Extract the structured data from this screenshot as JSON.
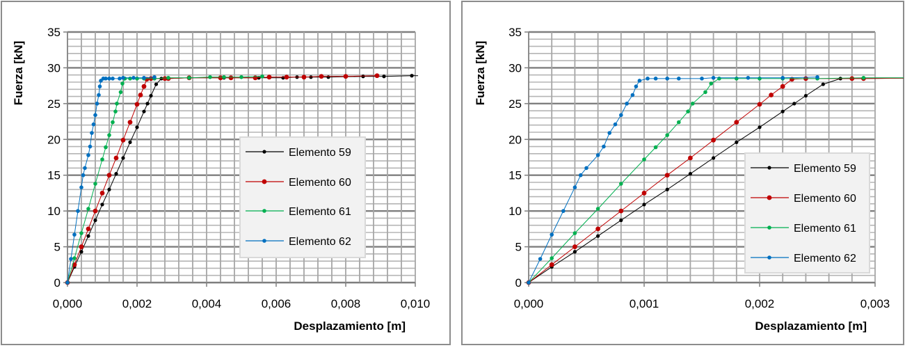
{
  "chart_data": [
    {
      "type": "line",
      "title": "",
      "xlabel": "Desplazamiento [m]",
      "ylabel": "Fuerza [kN]",
      "xlim": [
        0,
        0.01
      ],
      "ylim": [
        0,
        35
      ],
      "xticks": [
        0,
        0.002,
        0.004,
        0.006,
        0.008,
        0.01
      ],
      "xtick_labels": [
        "0,000",
        "0,002",
        "0,004",
        "0,006",
        "0,008",
        "0,010"
      ],
      "yticks": [
        0,
        5,
        10,
        15,
        20,
        25,
        30,
        35
      ],
      "ytick_labels": [
        "0",
        "5",
        "10",
        "15",
        "20",
        "25",
        "30",
        "35"
      ],
      "x_minor_step": 0.0004,
      "y_minor_step": 1,
      "grid": true,
      "legend_position": "center-right"
    },
    {
      "type": "line",
      "title": "",
      "xlabel": "Desplazamiento [m]",
      "ylabel": "Fuerza [kN]",
      "xlim": [
        0,
        0.003
      ],
      "ylim": [
        0,
        35
      ],
      "xticks": [
        0,
        0.001,
        0.002,
        0.003
      ],
      "xtick_labels": [
        "0,000",
        "0,001",
        "0,002",
        "0,003"
      ],
      "yticks": [
        0,
        5,
        10,
        15,
        20,
        25,
        30,
        35
      ],
      "ytick_labels": [
        "0",
        "5",
        "10",
        "15",
        "20",
        "25",
        "30",
        "35"
      ],
      "x_minor_step": 0.0002,
      "y_minor_step": 1,
      "grid": true,
      "legend_position": "lower-right"
    }
  ],
  "series": [
    {
      "name": "Elemento 59",
      "color": "#000000",
      "marker_size": 2.6,
      "x": [
        0,
        0.0002,
        0.0004,
        0.0006,
        0.0008,
        0.001,
        0.0012,
        0.0014,
        0.0016,
        0.0018,
        0.002,
        0.0022,
        0.0023,
        0.0024,
        0.00255,
        0.0027,
        0.0028,
        0.0035,
        0.0045,
        0.0055,
        0.0062,
        0.0066,
        0.007,
        0.0075,
        0.0085,
        0.0091,
        0.0099,
        0.0105
      ],
      "y": [
        0,
        2.2,
        4.3,
        6.5,
        8.7,
        10.9,
        13.0,
        15.2,
        17.4,
        19.6,
        21.7,
        23.9,
        25.0,
        26.1,
        27.7,
        28.5,
        28.5,
        28.6,
        28.6,
        28.6,
        28.6,
        28.7,
        28.7,
        28.7,
        28.8,
        28.8,
        28.9,
        28.9
      ]
    },
    {
      "name": "Elemento 60",
      "color": "#C00000",
      "marker_size": 3.4,
      "x": [
        0,
        0.0002,
        0.0004,
        0.0006,
        0.0008,
        0.001,
        0.0012,
        0.0014,
        0.0016,
        0.0018,
        0.002,
        0.0021,
        0.0022,
        0.00228,
        0.0024,
        0.0028,
        0.0029,
        0.0035,
        0.0044,
        0.0047,
        0.0054,
        0.0058,
        0.0063,
        0.0068,
        0.0073,
        0.008,
        0.0089
      ],
      "y": [
        0,
        2.5,
        5.0,
        7.5,
        10.0,
        12.5,
        15.0,
        17.4,
        19.9,
        22.4,
        24.9,
        26.2,
        27.4,
        28.4,
        28.5,
        28.5,
        28.5,
        28.6,
        28.6,
        28.6,
        28.6,
        28.7,
        28.7,
        28.7,
        28.8,
        28.8,
        28.9
      ]
    },
    {
      "name": "Elemento 61",
      "color": "#00B050",
      "marker_size": 2.8,
      "x": [
        0,
        0.0002,
        0.0004,
        0.0006,
        0.0008,
        0.001,
        0.0011,
        0.0012,
        0.0013,
        0.00138,
        0.00142,
        0.00153,
        0.00158,
        0.00165,
        0.0018,
        0.002,
        0.0022,
        0.0025,
        0.0029,
        0.0035,
        0.0041,
        0.0045,
        0.005,
        0.0056
      ],
      "y": [
        0,
        3.4,
        6.9,
        10.3,
        13.8,
        17.2,
        18.9,
        20.6,
        22.4,
        23.9,
        25.0,
        26.6,
        27.8,
        28.5,
        28.5,
        28.5,
        28.5,
        28.5,
        28.6,
        28.6,
        28.7,
        28.7,
        28.7,
        28.8
      ]
    },
    {
      "name": "Elemento 62",
      "color": "#0070C0",
      "marker_size": 2.8,
      "x": [
        0,
        0.0001,
        0.0002,
        0.0003,
        0.0004,
        0.00045,
        0.0005,
        0.0006,
        0.00065,
        0.0007,
        0.00075,
        0.0008,
        0.00085,
        0.0009,
        0.00093,
        0.00096,
        0.00103,
        0.0011,
        0.0012,
        0.0013,
        0.0015,
        0.0016,
        0.0019,
        0.0022,
        0.0025
      ],
      "y": [
        0,
        3.3,
        6.7,
        10.0,
        13.3,
        15.0,
        16.0,
        17.8,
        19.0,
        20.9,
        22.1,
        23.4,
        25.0,
        26.2,
        27.4,
        28.2,
        28.5,
        28.5,
        28.5,
        28.5,
        28.5,
        28.6,
        28.6,
        28.6,
        28.7
      ]
    }
  ]
}
